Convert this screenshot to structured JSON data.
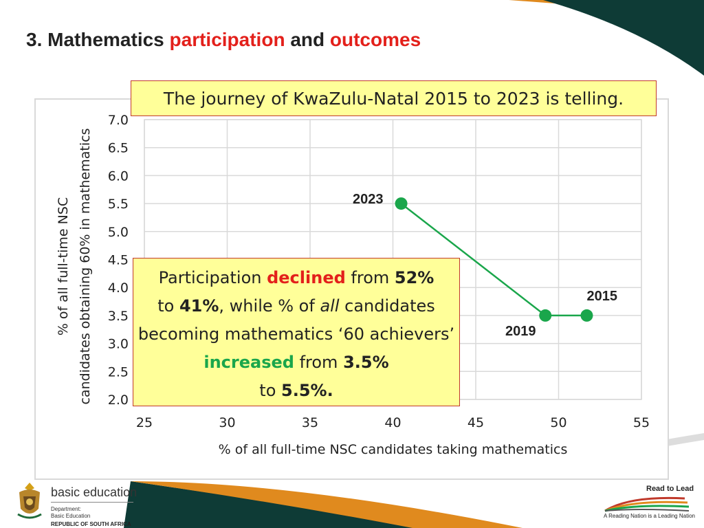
{
  "slide": {
    "title_prefix": "3. Mathematics ",
    "title_hl1": "participation",
    "title_mid": " and ",
    "title_hl2": "outcomes"
  },
  "subtitle_box": "The journey of KwaZulu-Natal 2015 to 2023 is telling.",
  "callout": {
    "t1": "Participation ",
    "t2": "declined",
    "t3": " from ",
    "t4": "52%",
    "t5": "to ",
    "t6": "41%",
    "t7": ", while % of ",
    "t8": "all",
    "t9": " candidates becoming mathematics ‘60 achievers’ ",
    "t10": "increased",
    "t11": " from ",
    "t12": "3.5%",
    "t13": "to ",
    "t14": "5.5%."
  },
  "colors": {
    "accent_red": "#e3201b",
    "accent_green": "#1aa64b",
    "series_line": "#1aa64b",
    "callout_bg": "#ffff99",
    "deco_dark": "#0e3b36",
    "deco_orange": "#e08a1e"
  },
  "chart_data": {
    "type": "scatter",
    "xlabel": "% of all full-time NSC candidates taking mathematics",
    "ylabel": "% of all full-time NSC candidates obtaining 60% in mathematics",
    "xlim": [
      25,
      55
    ],
    "ylim": [
      2.0,
      7.0
    ],
    "xticks": [
      "25",
      "30",
      "35",
      "40",
      "45",
      "50",
      "55"
    ],
    "yticks": [
      "2.0",
      "2.5",
      "3.0",
      "3.5",
      "4.0",
      "4.5",
      "5.0",
      "5.5",
      "6.0",
      "6.5",
      "7.0"
    ],
    "grid": true,
    "series": [
      {
        "points": [
          {
            "label": "2015",
            "x": 51.7,
            "y": 3.5
          },
          {
            "label": "2019",
            "x": 49.2,
            "y": 3.5
          },
          {
            "label": "2023",
            "x": 40.5,
            "y": 5.5
          }
        ]
      }
    ]
  },
  "footer": {
    "dbe_name": "basic education",
    "dbe_dept": "Department:",
    "dbe_sub": "Basic Education",
    "dbe_country": "REPUBLIC OF SOUTH AFRICA",
    "rtl_title": "Read to Lead",
    "rtl_tagline": "A Reading Nation is a Leading Nation"
  }
}
